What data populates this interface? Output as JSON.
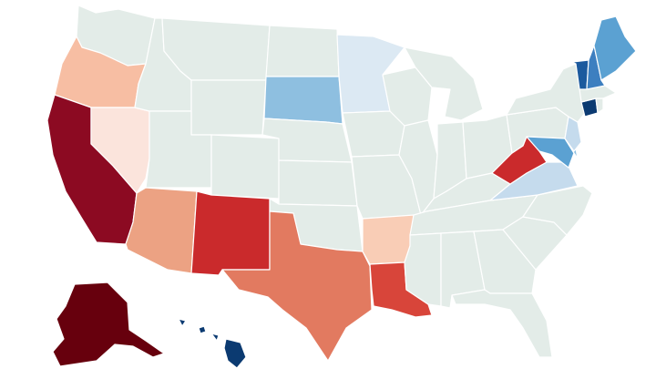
{
  "map": {
    "type": "us-states-choropleth",
    "colors": {
      "neutral": "#e3ece8",
      "dark_red": "#67000d",
      "red_deep": "#8c0a22",
      "red": "#ca2a2c",
      "red_mid": "#d8453a",
      "orange_red": "#e27a60",
      "salmon": "#eca283",
      "peach": "#f7bea3",
      "light_peach": "#f9cdb6",
      "blush": "#fbe4dc",
      "pale_blue": "#dce9f3",
      "light_blue": "#c5dbed",
      "sky_blue": "#8ebfe0",
      "mid_blue": "#5ba1d2",
      "blue": "#3d7fc0",
      "deep_blue": "#1c5a9e",
      "navy": "#0b3a71"
    },
    "states": [
      {
        "id": "WA",
        "color": "neutral"
      },
      {
        "id": "OR",
        "color": "peach"
      },
      {
        "id": "CA",
        "color": "red_deep"
      },
      {
        "id": "NV",
        "color": "blush"
      },
      {
        "id": "ID",
        "color": "neutral"
      },
      {
        "id": "MT",
        "color": "neutral"
      },
      {
        "id": "WY",
        "color": "neutral"
      },
      {
        "id": "UT",
        "color": "neutral"
      },
      {
        "id": "AZ",
        "color": "salmon"
      },
      {
        "id": "CO",
        "color": "neutral"
      },
      {
        "id": "NM",
        "color": "red"
      },
      {
        "id": "ND",
        "color": "neutral"
      },
      {
        "id": "SD",
        "color": "sky_blue"
      },
      {
        "id": "NE",
        "color": "neutral"
      },
      {
        "id": "KS",
        "color": "neutral"
      },
      {
        "id": "OK",
        "color": "neutral"
      },
      {
        "id": "TX",
        "color": "orange_red"
      },
      {
        "id": "MN",
        "color": "pale_blue"
      },
      {
        "id": "IA",
        "color": "neutral"
      },
      {
        "id": "MO",
        "color": "neutral"
      },
      {
        "id": "AR",
        "color": "light_peach"
      },
      {
        "id": "LA",
        "color": "red_mid"
      },
      {
        "id": "WI",
        "color": "neutral"
      },
      {
        "id": "IL",
        "color": "neutral"
      },
      {
        "id": "MI",
        "color": "neutral"
      },
      {
        "id": "IN",
        "color": "neutral"
      },
      {
        "id": "OH",
        "color": "neutral"
      },
      {
        "id": "KY",
        "color": "neutral"
      },
      {
        "id": "TN",
        "color": "neutral"
      },
      {
        "id": "MS",
        "color": "neutral"
      },
      {
        "id": "AL",
        "color": "neutral"
      },
      {
        "id": "GA",
        "color": "neutral"
      },
      {
        "id": "FL",
        "color": "neutral"
      },
      {
        "id": "SC",
        "color": "neutral"
      },
      {
        "id": "NC",
        "color": "neutral"
      },
      {
        "id": "VA",
        "color": "light_blue"
      },
      {
        "id": "WV",
        "color": "red"
      },
      {
        "id": "PA",
        "color": "neutral"
      },
      {
        "id": "NY",
        "color": "neutral"
      },
      {
        "id": "NJ",
        "color": "light_blue"
      },
      {
        "id": "DE",
        "color": "sky_blue"
      },
      {
        "id": "MD",
        "color": "mid_blue"
      },
      {
        "id": "CT",
        "color": "navy"
      },
      {
        "id": "RI",
        "color": "neutral"
      },
      {
        "id": "MA",
        "color": "neutral"
      },
      {
        "id": "VT",
        "color": "deep_blue"
      },
      {
        "id": "NH",
        "color": "blue"
      },
      {
        "id": "ME",
        "color": "mid_blue"
      },
      {
        "id": "AK",
        "color": "dark_red"
      },
      {
        "id": "HI",
        "color": "navy"
      }
    ]
  }
}
